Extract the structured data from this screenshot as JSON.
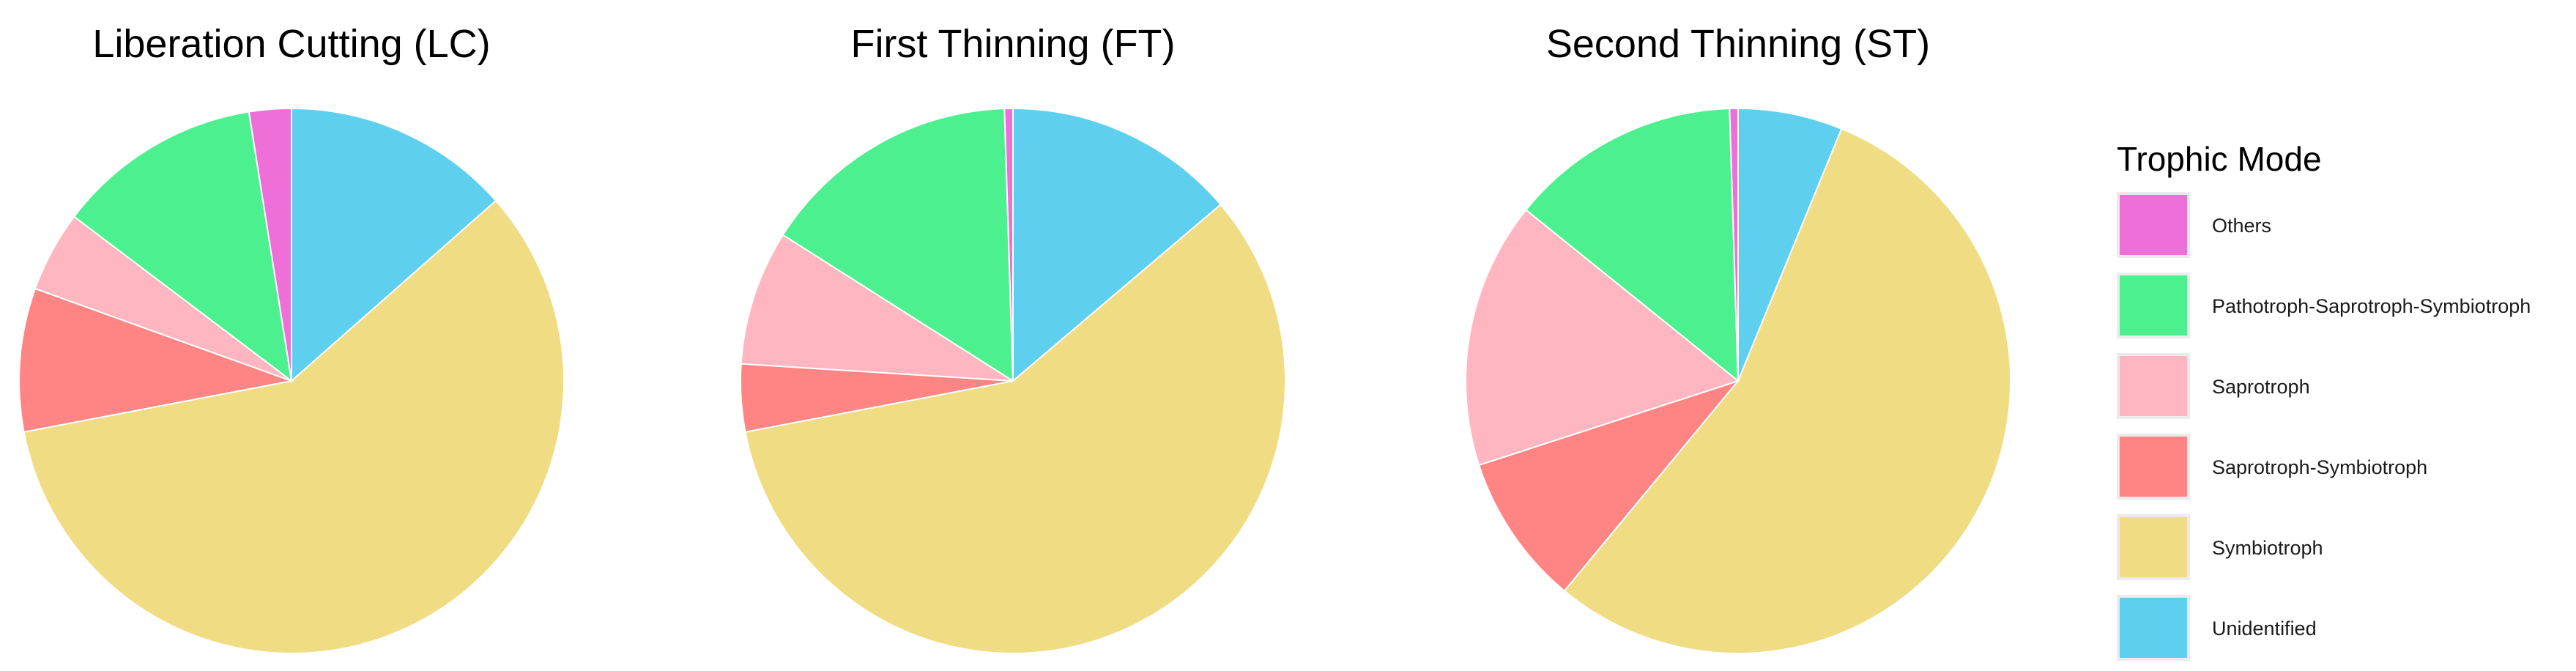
{
  "chart_data": {
    "type": "pie",
    "legend": {
      "title": "Trophic Mode",
      "placement": "right",
      "entries": [
        {
          "name": "Others",
          "color": "#EE6FD8"
        },
        {
          "name": "Pathotroph-Saprotroph-Symbiotroph",
          "color": "#4CF08E"
        },
        {
          "name": "Saprotroph",
          "color": "#FFB6C1"
        },
        {
          "name": "Saprotroph-Symbiotroph",
          "color": "#FF8585"
        },
        {
          "name": "Symbiotroph",
          "color": "#F0DC82"
        },
        {
          "name": "Unidentified",
          "color": "#5ECFEE"
        }
      ]
    },
    "charts": [
      {
        "title": "Liberation Cutting (LC)",
        "categories": [
          "Unidentified",
          "Symbiotroph",
          "Saprotroph-Symbiotroph",
          "Saprotroph",
          "Pathotroph-Saprotroph-Symbiotroph",
          "Others"
        ],
        "values": [
          13.5,
          58.5,
          8.5,
          4.8,
          12.2,
          2.5
        ]
      },
      {
        "title": "First Thinning (FT)",
        "categories": [
          "Unidentified",
          "Symbiotroph",
          "Saprotroph-Symbiotroph",
          "Saprotroph",
          "Pathotroph-Saprotroph-Symbiotroph",
          "Others"
        ],
        "values": [
          13.8,
          58.2,
          4.0,
          8.0,
          15.5,
          0.5
        ]
      },
      {
        "title": "Second Thinning (ST)",
        "categories": [
          "Unidentified",
          "Symbiotroph",
          "Saprotroph-Symbiotroph",
          "Saprotroph",
          "Pathotroph-Saprotroph-Symbiotroph",
          "Others"
        ],
        "values": [
          6.2,
          54.8,
          9.0,
          15.8,
          13.7,
          0.5
        ]
      }
    ]
  }
}
